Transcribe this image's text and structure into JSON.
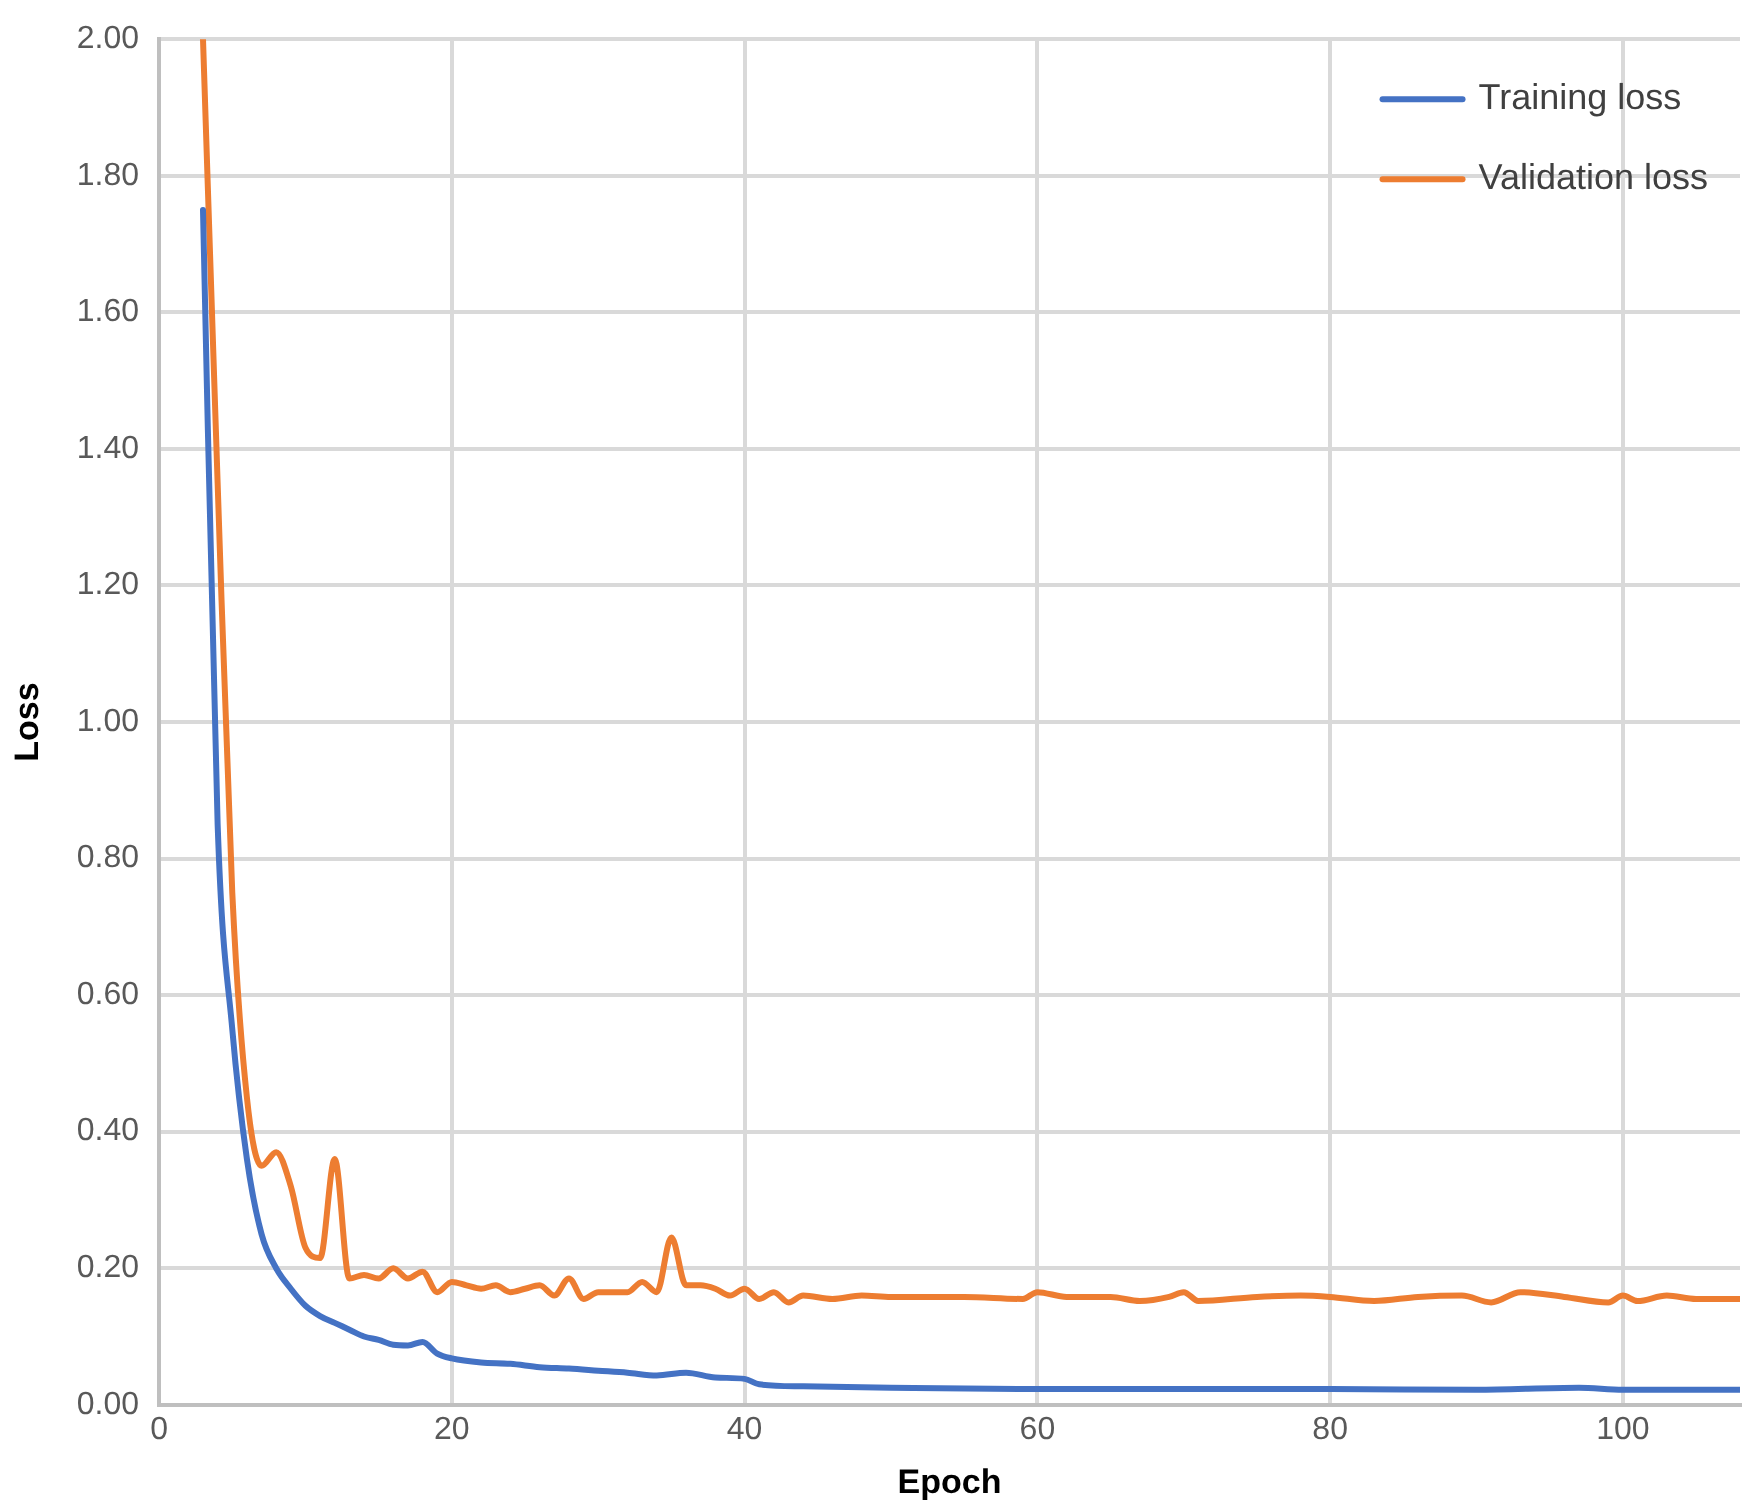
{
  "chart_data": {
    "type": "line",
    "xlabel": "Epoch",
    "ylabel": "Loss",
    "xlim": [
      0,
      108
    ],
    "xticks": [
      0,
      20,
      40,
      60,
      80,
      100
    ],
    "ylim": [
      0,
      2
    ],
    "yticks": [
      {
        "value": 0,
        "label": "0.00"
      },
      {
        "value": 0.2,
        "label": "0.20"
      },
      {
        "value": 0.4,
        "label": "0.40"
      },
      {
        "value": 0.6,
        "label": "0.60"
      },
      {
        "value": 0.8,
        "label": "0.80"
      },
      {
        "value": 1,
        "label": "1.00"
      },
      {
        "value": 1.2,
        "label": "1.20"
      },
      {
        "value": 1.4,
        "label": "1.40"
      },
      {
        "value": 1.6,
        "label": "1.60"
      },
      {
        "value": 1.8,
        "label": "1.80"
      },
      {
        "value": 2,
        "label": "2.00"
      }
    ],
    "grid": true,
    "legend": "top right",
    "marker": "none",
    "line_style": "solid",
    "series": [
      {
        "name": "Training loss",
        "color": "#4472c4",
        "x": [
          3,
          4,
          5,
          6,
          7,
          8,
          9,
          10,
          11,
          12,
          13,
          14,
          15,
          16,
          17,
          18,
          19,
          20,
          22,
          24,
          26,
          28,
          30,
          32,
          34,
          36,
          38,
          40,
          41,
          44,
          50,
          60,
          70,
          80,
          90,
          97,
          100,
          108
        ],
        "values": [
          1.75,
          0.85,
          0.55,
          0.36,
          0.25,
          0.2,
          0.17,
          0.145,
          0.13,
          0.12,
          0.11,
          0.1,
          0.095,
          0.088,
          0.087,
          0.092,
          0.075,
          0.068,
          0.062,
          0.06,
          0.055,
          0.053,
          0.05,
          0.047,
          0.043,
          0.047,
          0.04,
          0.038,
          0.03,
          0.027,
          0.025,
          0.023,
          0.023,
          0.023,
          0.022,
          0.025,
          0.022,
          0.022
        ]
      },
      {
        "name": "Validation loss",
        "color": "#ed7d31",
        "x": [
          3,
          4,
          5,
          6,
          7,
          8,
          9,
          10,
          11,
          12,
          13,
          14,
          15,
          16,
          17,
          18,
          19,
          20,
          21,
          22,
          23,
          24,
          25,
          26,
          27,
          28,
          29,
          30,
          32,
          33,
          34,
          35,
          36,
          37,
          38,
          39,
          40,
          41,
          42,
          43,
          44,
          46,
          48,
          50,
          55,
          59,
          60,
          62,
          65,
          67,
          69,
          70,
          71,
          75,
          78,
          80,
          83,
          86,
          89,
          91,
          93,
          96,
          99,
          100,
          101,
          103,
          105,
          108
        ],
        "values": [
          2,
          1.35,
          0.75,
          0.45,
          0.35,
          0.37,
          0.32,
          0.23,
          0.215,
          0.36,
          0.185,
          0.19,
          0.185,
          0.2,
          0.185,
          0.195,
          0.165,
          0.18,
          0.175,
          0.17,
          0.175,
          0.165,
          0.17,
          0.175,
          0.16,
          0.185,
          0.155,
          0.165,
          0.165,
          0.18,
          0.165,
          0.245,
          0.175,
          0.175,
          0.17,
          0.16,
          0.17,
          0.155,
          0.165,
          0.15,
          0.16,
          0.155,
          0.16,
          0.158,
          0.158,
          0.155,
          0.165,
          0.158,
          0.158,
          0.152,
          0.158,
          0.165,
          0.152,
          0.158,
          0.16,
          0.158,
          0.152,
          0.158,
          0.16,
          0.15,
          0.165,
          0.158,
          0.15,
          0.16,
          0.152,
          0.16,
          0.155,
          0.155
        ]
      }
    ]
  }
}
